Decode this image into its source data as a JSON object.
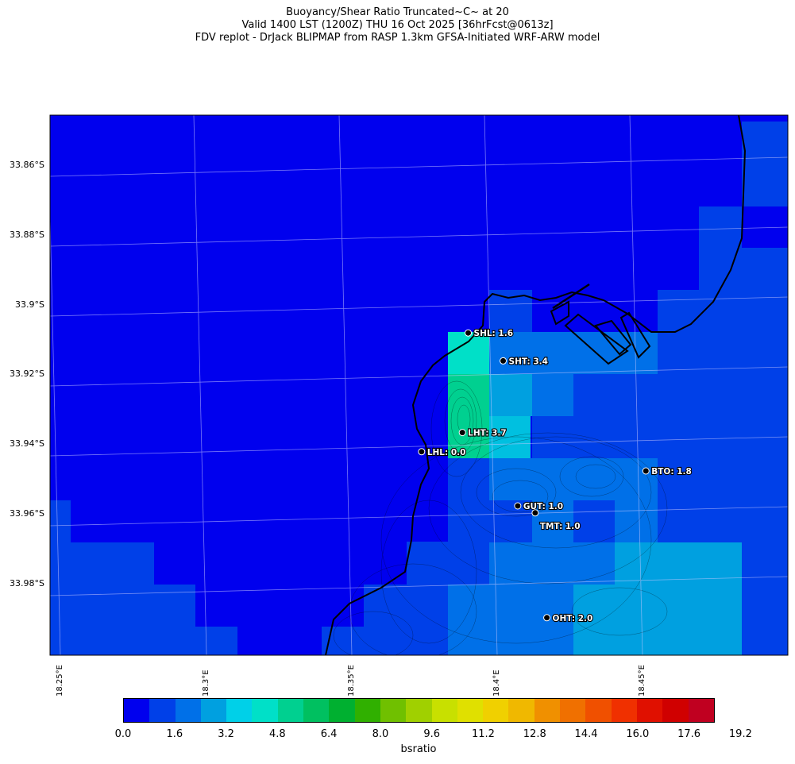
{
  "title": {
    "line1": "Buoyancy/Shear Ratio Truncated~C~    at 20",
    "line2": "Valid 1400 LST (1200Z) THU 16 Oct 2025 [36hrFcst@0613z]",
    "line3": "FDV replot - DrJack BLIPMAP from RASP 1.3km GFSA-Initiated WRF-ARW model"
  },
  "lat_labels": [
    "33.86°S",
    "33.88°S",
    "33.9°S",
    "33.92°S",
    "33.94°S",
    "33.96°S",
    "33.98°S"
  ],
  "lon_labels": [
    "18.25°E",
    "18.3°E",
    "18.35°E",
    "18.4°E",
    "18.45°E"
  ],
  "sites": [
    {
      "label": "SHL: 1.6",
      "lon": 18.39,
      "lat": -33.908
    },
    {
      "label": "SHT: 3.4",
      "lon": 18.402,
      "lat": -33.916
    },
    {
      "label": "LHT: 3.7",
      "lon": 18.388,
      "lat": -33.9365
    },
    {
      "label": "LHL: 0.0",
      "lon": 18.374,
      "lat": -33.942
    },
    {
      "label": "BTO: 1.8",
      "lon": 18.451,
      "lat": -33.9475
    },
    {
      "label": "GUT: 1.0",
      "lon": 18.407,
      "lat": -33.9575
    },
    {
      "label": "TMT: 1.0",
      "lon": 18.413,
      "lat": -33.9595
    },
    {
      "label": "OHT: 2.0",
      "lon": 18.417,
      "lat": -33.9895
    }
  ],
  "colorbar": {
    "title": "bsratio",
    "tick_labels": [
      "0.0",
      "1.6",
      "3.2",
      "4.8",
      "6.4",
      "8.0",
      "9.6",
      "11.2",
      "12.8",
      "14.4",
      "16.0",
      "17.6",
      "19.2"
    ],
    "colors": [
      "#0000ee",
      "#0040e8",
      "#0070e8",
      "#00a0e0",
      "#00d0e8",
      "#00e0c8",
      "#00d090",
      "#00c060",
      "#00b030",
      "#30b000",
      "#70c000",
      "#a0d000",
      "#c8e000",
      "#e0e000",
      "#f0d000",
      "#f0b800",
      "#f09000",
      "#f07000",
      "#f05000",
      "#f03000",
      "#e01000",
      "#d00000",
      "#c00020"
    ]
  }
}
